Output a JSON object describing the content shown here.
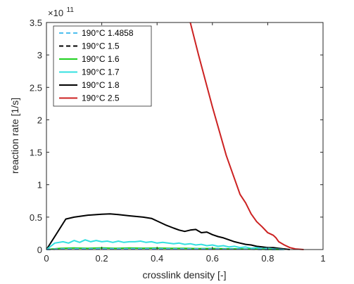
{
  "chart_data": {
    "type": "line",
    "xlabel": "crosslink density [-]",
    "ylabel": "reaction rate [1/s]",
    "y_multiplier": {
      "base": "×10",
      "exponent": "11"
    },
    "xlim": [
      0,
      1
    ],
    "ylim": [
      0,
      3.5
    ],
    "x_ticks": [
      0,
      0.2,
      0.4,
      0.6,
      0.8,
      1
    ],
    "x_tick_labels": [
      "0",
      "0.2",
      "0.4",
      "0.6",
      "0.8",
      "1"
    ],
    "y_ticks": [
      0,
      0.5,
      1,
      1.5,
      2,
      2.5,
      3,
      3.5
    ],
    "y_tick_labels": [
      "0",
      "0.5",
      "1",
      "1.5",
      "2",
      "2.5",
      "3",
      "3.5"
    ],
    "grid": false,
    "legend_position": "top-left",
    "series": [
      {
        "name": "190°C 1.4858",
        "color": "#4dbeee",
        "dash": "dashed",
        "x": [
          0,
          0.05,
          0.1,
          0.2,
          0.3,
          0.4,
          0.5,
          0.6,
          0.7,
          0.8,
          0.86
        ],
        "y": [
          0,
          0.01,
          0.012,
          0.013,
          0.012,
          0.012,
          0.011,
          0.01,
          0.007,
          0.003,
          0
        ]
      },
      {
        "name": "190°C 1.5",
        "color": "#000000",
        "dash": "dashed",
        "x": [
          0,
          0.05,
          0.1,
          0.2,
          0.3,
          0.4,
          0.5,
          0.6,
          0.7,
          0.8,
          0.86
        ],
        "y": [
          0,
          0.008,
          0.01,
          0.011,
          0.01,
          0.01,
          0.009,
          0.008,
          0.006,
          0.002,
          0
        ]
      },
      {
        "name": "190°C 1.6",
        "color": "#1fd01f",
        "dash": "solid",
        "x": [
          0,
          0.05,
          0.1,
          0.15,
          0.2,
          0.25,
          0.3,
          0.35,
          0.4,
          0.45,
          0.5,
          0.55,
          0.6,
          0.65,
          0.7,
          0.75,
          0.8,
          0.85
        ],
        "y": [
          0,
          0.02,
          0.025,
          0.02,
          0.026,
          0.02,
          0.024,
          0.021,
          0.023,
          0.018,
          0.02,
          0.015,
          0.016,
          0.012,
          0.01,
          0.006,
          0.003,
          0
        ]
      },
      {
        "name": "190°C 1.7",
        "color": "#33e0e0",
        "dash": "solid",
        "x": [
          0,
          0.03,
          0.06,
          0.08,
          0.1,
          0.12,
          0.14,
          0.16,
          0.18,
          0.2,
          0.22,
          0.24,
          0.26,
          0.28,
          0.3,
          0.32,
          0.34,
          0.36,
          0.38,
          0.4,
          0.42,
          0.44,
          0.46,
          0.48,
          0.5,
          0.52,
          0.54,
          0.56,
          0.58,
          0.6,
          0.62,
          0.64,
          0.66,
          0.68,
          0.7,
          0.72,
          0.74,
          0.76,
          0.78,
          0.8,
          0.82,
          0.84,
          0.86
        ],
        "y": [
          0,
          0.1,
          0.12,
          0.1,
          0.14,
          0.11,
          0.15,
          0.12,
          0.14,
          0.12,
          0.13,
          0.11,
          0.13,
          0.11,
          0.12,
          0.12,
          0.13,
          0.11,
          0.12,
          0.1,
          0.11,
          0.1,
          0.09,
          0.1,
          0.08,
          0.09,
          0.07,
          0.08,
          0.06,
          0.07,
          0.05,
          0.06,
          0.04,
          0.05,
          0.03,
          0.04,
          0.02,
          0.03,
          0.015,
          0.02,
          0.01,
          0.005,
          0
        ]
      },
      {
        "name": "190°C 1.8",
        "color": "#000000",
        "dash": "solid",
        "x": [
          0,
          0.03,
          0.07,
          0.1,
          0.15,
          0.2,
          0.23,
          0.26,
          0.3,
          0.35,
          0.38,
          0.4,
          0.43,
          0.46,
          0.48,
          0.5,
          0.52,
          0.54,
          0.56,
          0.58,
          0.6,
          0.62,
          0.64,
          0.66,
          0.68,
          0.7,
          0.72,
          0.74,
          0.76,
          0.78,
          0.8,
          0.82,
          0.84,
          0.86,
          0.88
        ],
        "y": [
          0,
          0.2,
          0.47,
          0.5,
          0.53,
          0.545,
          0.55,
          0.54,
          0.52,
          0.5,
          0.48,
          0.44,
          0.38,
          0.33,
          0.3,
          0.28,
          0.3,
          0.31,
          0.26,
          0.27,
          0.23,
          0.2,
          0.18,
          0.15,
          0.12,
          0.1,
          0.08,
          0.07,
          0.05,
          0.04,
          0.03,
          0.03,
          0.02,
          0.01,
          0
        ]
      },
      {
        "name": "190°C 2.5",
        "color": "#cc2222",
        "dash": "solid",
        "x": [
          0.52,
          0.55,
          0.6,
          0.65,
          0.7,
          0.72,
          0.74,
          0.76,
          0.78,
          0.8,
          0.82,
          0.83,
          0.84,
          0.86,
          0.88,
          0.9,
          0.93
        ],
        "y": [
          3.5,
          3.0,
          2.2,
          1.45,
          0.85,
          0.72,
          0.55,
          0.43,
          0.35,
          0.26,
          0.22,
          0.18,
          0.12,
          0.07,
          0.03,
          0.01,
          0
        ]
      }
    ]
  }
}
